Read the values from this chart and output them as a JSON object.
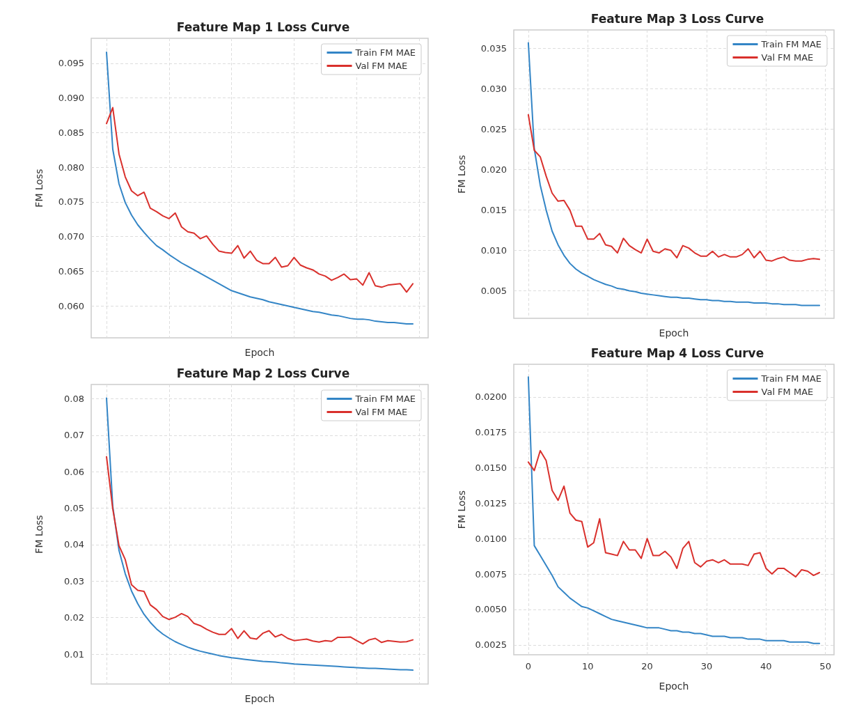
{
  "chart_data": [
    {
      "type": "line",
      "title": "Feature Map 1 Loss Curve",
      "xlabel": "Epoch",
      "ylabel": "FM Loss",
      "legend": "top right",
      "grid": true,
      "marker": "none",
      "line_style": "solid",
      "tick_labels": "y",
      "categories": [
        null,
        null,
        null,
        null,
        null,
        null,
        null,
        null,
        null,
        null,
        null,
        null,
        null,
        null,
        null,
        null,
        null,
        null,
        null,
        null,
        null,
        null,
        null,
        null,
        null,
        null,
        null,
        null,
        null,
        null,
        null,
        null,
        null,
        null,
        null,
        null,
        null,
        null,
        null,
        null,
        null,
        null,
        null,
        null,
        null,
        null,
        null,
        null,
        null,
        null
      ],
      "ylim": [
        0.0554,
        0.0986
      ],
      "yticks": [
        {
          "value": 0.06,
          "label": "0.060"
        },
        {
          "value": 0.065,
          "label": "0.065"
        },
        {
          "value": 0.07,
          "label": "0.070"
        },
        {
          "value": 0.075,
          "label": "0.075"
        },
        {
          "value": 0.08,
          "label": "0.080"
        },
        {
          "value": 0.085,
          "label": "0.085"
        },
        {
          "value": 0.09,
          "label": "0.090"
        },
        {
          "value": 0.095,
          "label": "0.095"
        }
      ],
      "series": [
        {
          "name": "Train FM MAE",
          "color": "#3385c6",
          "values": [
            0.0966,
            0.0826,
            0.0776,
            0.0749,
            0.0731,
            0.0717,
            0.0706,
            0.0696,
            0.0687,
            0.0681,
            0.0674,
            0.0668,
            0.0662,
            0.0657,
            0.0652,
            0.0647,
            0.0642,
            0.0637,
            0.0632,
            0.0627,
            0.0622,
            0.0619,
            0.0616,
            0.0613,
            0.0611,
            0.0609,
            0.0606,
            0.0604,
            0.0602,
            0.06,
            0.0598,
            0.0596,
            0.0594,
            0.0592,
            0.0591,
            0.0589,
            0.0587,
            0.0586,
            0.0584,
            0.0582,
            0.0581,
            0.0581,
            0.058,
            0.0578,
            0.0577,
            0.0576,
            0.0576,
            0.0575,
            0.0574,
            0.0574
          ]
        },
        {
          "name": "Val FM MAE",
          "color": "#d9302c",
          "values": [
            0.0863,
            0.0886,
            0.0819,
            0.0786,
            0.0766,
            0.0759,
            0.0764,
            0.0741,
            0.0736,
            0.073,
            0.0726,
            0.0734,
            0.0714,
            0.0707,
            0.0705,
            0.0697,
            0.0701,
            0.0689,
            0.0679,
            0.0677,
            0.0676,
            0.0687,
            0.0669,
            0.0679,
            0.0666,
            0.0661,
            0.0661,
            0.067,
            0.0656,
            0.0658,
            0.067,
            0.0659,
            0.0655,
            0.0652,
            0.0646,
            0.0643,
            0.0637,
            0.0641,
            0.0646,
            0.0638,
            0.0639,
            0.063,
            0.0648,
            0.0629,
            0.0627,
            0.063,
            0.0631,
            0.0632,
            0.062,
            0.0632
          ]
        }
      ]
    },
    {
      "type": "line",
      "title": "Feature Map 3 Loss Curve",
      "xlabel": "Epoch",
      "ylabel": "FM Loss",
      "legend": "top right",
      "grid": true,
      "marker": "none",
      "line_style": "solid",
      "tick_labels": "y",
      "categories": [
        null,
        null,
        null,
        null,
        null,
        null,
        null,
        null,
        null,
        null,
        null,
        null,
        null,
        null,
        null,
        null,
        null,
        null,
        null,
        null,
        null,
        null,
        null,
        null,
        null,
        null,
        null,
        null,
        null,
        null,
        null,
        null,
        null,
        null,
        null,
        null,
        null,
        null,
        null,
        null,
        null,
        null,
        null,
        null,
        null,
        null,
        null,
        null,
        null,
        null
      ],
      "ylim": [
        0.0016,
        0.0373
      ],
      "yticks": [
        {
          "value": 0.005,
          "label": "0.005"
        },
        {
          "value": 0.01,
          "label": "0.010"
        },
        {
          "value": 0.015,
          "label": "0.015"
        },
        {
          "value": 0.02,
          "label": "0.020"
        },
        {
          "value": 0.025,
          "label": "0.025"
        },
        {
          "value": 0.03,
          "label": "0.030"
        },
        {
          "value": 0.035,
          "label": "0.035"
        }
      ],
      "series": [
        {
          "name": "Train FM MAE",
          "color": "#3385c6",
          "values": [
            0.0357,
            0.0226,
            0.0181,
            0.015,
            0.0124,
            0.0107,
            0.0094,
            0.0084,
            0.0077,
            0.0072,
            0.0068,
            0.0064,
            0.0061,
            0.0058,
            0.0056,
            0.0053,
            0.0052,
            0.005,
            0.0049,
            0.0047,
            0.0046,
            0.0045,
            0.0044,
            0.0043,
            0.0042,
            0.0042,
            0.0041,
            0.0041,
            0.004,
            0.0039,
            0.0039,
            0.0038,
            0.0038,
            0.0037,
            0.0037,
            0.0036,
            0.0036,
            0.0036,
            0.0035,
            0.0035,
            0.0035,
            0.0034,
            0.0034,
            0.0033,
            0.0033,
            0.0033,
            0.0032,
            0.0032,
            0.0032,
            0.0032
          ]
        },
        {
          "name": "Val FM MAE",
          "color": "#d9302c",
          "values": [
            0.0268,
            0.0224,
            0.0216,
            0.0192,
            0.0171,
            0.0161,
            0.0162,
            0.015,
            0.013,
            0.013,
            0.0114,
            0.0114,
            0.0121,
            0.0107,
            0.0105,
            0.0097,
            0.0115,
            0.0106,
            0.0101,
            0.0097,
            0.0114,
            0.0099,
            0.0097,
            0.0102,
            0.01,
            0.0091,
            0.0106,
            0.0103,
            0.0097,
            0.0093,
            0.0093,
            0.0099,
            0.0092,
            0.0095,
            0.0092,
            0.0092,
            0.0095,
            0.0102,
            0.0091,
            0.0099,
            0.0088,
            0.0087,
            0.009,
            0.0092,
            0.0088,
            0.0087,
            0.0087,
            0.0089,
            0.009,
            0.0089
          ]
        }
      ]
    },
    {
      "type": "line",
      "title": "Feature Map 2 Loss Curve",
      "xlabel": "Epoch",
      "ylabel": "FM Loss",
      "legend": "top right",
      "grid": true,
      "marker": "none",
      "line_style": "solid",
      "tick_labels": "y",
      "categories": [
        null,
        null,
        null,
        null,
        null,
        null,
        null,
        null,
        null,
        null,
        null,
        null,
        null,
        null,
        null,
        null,
        null,
        null,
        null,
        null,
        null,
        null,
        null,
        null,
        null,
        null,
        null,
        null,
        null,
        null,
        null,
        null,
        null,
        null,
        null,
        null,
        null,
        null,
        null,
        null,
        null,
        null,
        null,
        null,
        null,
        null,
        null,
        null,
        null,
        null
      ],
      "ylim": [
        0.0018,
        0.0839
      ],
      "yticks": [
        0.01,
        0.02,
        0.03,
        0.04,
        0.05,
        0.06,
        0.07,
        0.08
      ],
      "series": [
        {
          "name": "Train FM MAE",
          "color": "#3385c6",
          "values": [
            0.0802,
            0.0505,
            0.0384,
            0.032,
            0.0273,
            0.0238,
            0.0209,
            0.0187,
            0.0169,
            0.0155,
            0.0144,
            0.0134,
            0.0126,
            0.0119,
            0.0113,
            0.0108,
            0.0104,
            0.01,
            0.0096,
            0.0093,
            0.009,
            0.0088,
            0.0086,
            0.0084,
            0.0082,
            0.008,
            0.0079,
            0.0078,
            0.0076,
            0.0075,
            0.0073,
            0.0072,
            0.0071,
            0.007,
            0.0069,
            0.0068,
            0.0067,
            0.0066,
            0.0065,
            0.0064,
            0.0063,
            0.0062,
            0.0061,
            0.0061,
            0.006,
            0.0059,
            0.0058,
            0.0057,
            0.0057,
            0.0056
          ]
        },
        {
          "name": "Val FM MAE",
          "color": "#d9302c",
          "values": [
            0.0641,
            0.0498,
            0.0397,
            0.0359,
            0.029,
            0.0275,
            0.0272,
            0.0235,
            0.0222,
            0.0203,
            0.0195,
            0.0201,
            0.0211,
            0.0203,
            0.0184,
            0.0178,
            0.0168,
            0.016,
            0.0154,
            0.0154,
            0.017,
            0.0143,
            0.0164,
            0.0144,
            0.0141,
            0.0157,
            0.0164,
            0.0147,
            0.0154,
            0.0143,
            0.0137,
            0.0139,
            0.0141,
            0.0136,
            0.0133,
            0.0137,
            0.0135,
            0.0146,
            0.0146,
            0.0147,
            0.0137,
            0.0128,
            0.0139,
            0.0143,
            0.0132,
            0.0137,
            0.0135,
            0.0133,
            0.0134,
            0.0139
          ]
        }
      ]
    },
    {
      "type": "line",
      "title": "Feature Map 4 Loss Curve",
      "xlabel": "Epoch",
      "ylabel": "FM Loss",
      "legend": "top right",
      "grid": true,
      "marker": "none",
      "line_style": "solid",
      "x": [
        0,
        1,
        2,
        3,
        4,
        5,
        6,
        7,
        8,
        9,
        10,
        11,
        12,
        13,
        14,
        15,
        16,
        17,
        18,
        19,
        20,
        21,
        22,
        23,
        24,
        25,
        26,
        27,
        28,
        29,
        30,
        31,
        32,
        33,
        34,
        35,
        36,
        37,
        38,
        39,
        40,
        41,
        42,
        43,
        44,
        45,
        46,
        47,
        48,
        49
      ],
      "xlim": [
        -2.45,
        51.45
      ],
      "xticks": [
        0,
        10,
        20,
        30,
        40,
        50
      ],
      "ylim": [
        0.0018,
        0.0223
      ],
      "yticks": [
        {
          "value": 0.0025,
          "label": "0.0025"
        },
        {
          "value": 0.005,
          "label": "0.0050"
        },
        {
          "value": 0.0075,
          "label": "0.0075"
        },
        {
          "value": 0.01,
          "label": "0.0100"
        },
        {
          "value": 0.0125,
          "label": "0.0125"
        },
        {
          "value": 0.015,
          "label": "0.0150"
        },
        {
          "value": 0.0175,
          "label": "0.0175"
        },
        {
          "value": 0.02,
          "label": "0.0200"
        }
      ],
      "series": [
        {
          "name": "Train FM MAE",
          "color": "#3385c6",
          "values": [
            0.0214,
            0.0095,
            0.0088,
            0.0081,
            0.0074,
            0.0066,
            0.0062,
            0.0058,
            0.0055,
            0.0052,
            0.0051,
            0.0049,
            0.0047,
            0.0045,
            0.0043,
            0.0042,
            0.0041,
            0.004,
            0.0039,
            0.0038,
            0.0037,
            0.0037,
            0.0037,
            0.0036,
            0.0035,
            0.0035,
            0.0034,
            0.0034,
            0.0033,
            0.0033,
            0.0032,
            0.0031,
            0.0031,
            0.0031,
            0.003,
            0.003,
            0.003,
            0.0029,
            0.0029,
            0.0029,
            0.0028,
            0.0028,
            0.0028,
            0.0028,
            0.0027,
            0.0027,
            0.0027,
            0.0027,
            0.0026,
            0.0026
          ]
        },
        {
          "name": "Val FM MAE",
          "color": "#d9302c",
          "values": [
            0.0154,
            0.0148,
            0.0162,
            0.0155,
            0.0134,
            0.0127,
            0.0137,
            0.0118,
            0.0113,
            0.0112,
            0.0094,
            0.0097,
            0.0114,
            0.009,
            0.0089,
            0.0088,
            0.0098,
            0.0092,
            0.0092,
            0.0086,
            0.01,
            0.0088,
            0.0088,
            0.0091,
            0.0087,
            0.0079,
            0.0093,
            0.0098,
            0.0083,
            0.008,
            0.0084,
            0.0085,
            0.0083,
            0.0085,
            0.0082,
            0.0082,
            0.0082,
            0.0081,
            0.0089,
            0.009,
            0.0079,
            0.0075,
            0.0079,
            0.0079,
            0.0076,
            0.0073,
            0.0078,
            0.0077,
            0.0074,
            0.0076
          ]
        }
      ]
    }
  ]
}
